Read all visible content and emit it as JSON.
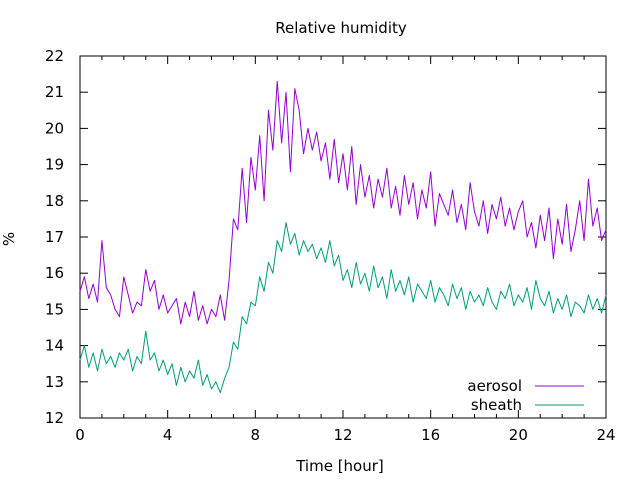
{
  "chart_data": {
    "type": "line",
    "title": "Relative humidity",
    "xlabel": "Time [hour]",
    "ylabel": "%",
    "xlim": [
      0,
      24
    ],
    "ylim": [
      12,
      22
    ],
    "xticks": [
      0,
      4,
      8,
      12,
      16,
      20,
      24
    ],
    "yticks": [
      12,
      13,
      14,
      15,
      16,
      17,
      18,
      19,
      20,
      21,
      22
    ],
    "grid": false,
    "legend_position": "bottom-right",
    "series": [
      {
        "name": "aerosol",
        "color": "#9400d3",
        "x": [
          0.0,
          0.2,
          0.4,
          0.6,
          0.8,
          1.0,
          1.2,
          1.4,
          1.6,
          1.8,
          2.0,
          2.2,
          2.4,
          2.6,
          2.8,
          3.0,
          3.2,
          3.4,
          3.6,
          3.8,
          4.0,
          4.2,
          4.4,
          4.6,
          4.8,
          5.0,
          5.2,
          5.4,
          5.6,
          5.8,
          6.0,
          6.2,
          6.4,
          6.6,
          6.8,
          7.0,
          7.2,
          7.4,
          7.6,
          7.8,
          8.0,
          8.2,
          8.4,
          8.6,
          8.8,
          9.0,
          9.2,
          9.4,
          9.6,
          9.8,
          10.0,
          10.2,
          10.4,
          10.6,
          10.8,
          11.0,
          11.2,
          11.4,
          11.6,
          11.8,
          12.0,
          12.2,
          12.4,
          12.6,
          12.8,
          13.0,
          13.2,
          13.4,
          13.6,
          13.8,
          14.0,
          14.2,
          14.4,
          14.6,
          14.8,
          15.0,
          15.2,
          15.4,
          15.6,
          15.8,
          16.0,
          16.2,
          16.4,
          16.6,
          16.8,
          17.0,
          17.2,
          17.4,
          17.6,
          17.8,
          18.0,
          18.2,
          18.4,
          18.6,
          18.8,
          19.0,
          19.2,
          19.4,
          19.6,
          19.8,
          20.0,
          20.2,
          20.4,
          20.6,
          20.8,
          21.0,
          21.2,
          21.4,
          21.6,
          21.8,
          22.0,
          22.2,
          22.4,
          22.6,
          22.8,
          23.0,
          23.2,
          23.4,
          23.6,
          23.8,
          24.0
        ],
        "y": [
          15.5,
          15.9,
          15.3,
          15.7,
          15.2,
          16.9,
          15.6,
          15.4,
          15.0,
          14.8,
          15.9,
          15.4,
          14.9,
          15.2,
          15.1,
          16.1,
          15.5,
          15.8,
          15.0,
          15.4,
          14.9,
          15.1,
          15.3,
          14.6,
          15.2,
          14.8,
          15.5,
          14.7,
          15.1,
          14.6,
          15.0,
          14.8,
          15.4,
          14.7,
          15.8,
          17.5,
          17.2,
          18.9,
          17.4,
          19.2,
          18.3,
          19.8,
          18.0,
          20.5,
          19.4,
          21.3,
          19.6,
          21.0,
          18.8,
          21.1,
          20.5,
          19.3,
          20.0,
          19.4,
          19.9,
          19.1,
          19.6,
          18.6,
          19.7,
          18.5,
          19.3,
          18.3,
          19.5,
          17.9,
          19.0,
          18.1,
          18.7,
          17.8,
          18.6,
          18.1,
          18.9,
          17.8,
          18.4,
          17.6,
          18.7,
          17.9,
          18.5,
          17.5,
          18.3,
          17.8,
          18.8,
          17.3,
          18.2,
          17.9,
          17.6,
          18.3,
          17.4,
          17.9,
          17.2,
          18.5,
          17.7,
          17.3,
          18.0,
          17.1,
          17.9,
          17.5,
          18.1,
          17.3,
          17.8,
          17.2,
          17.7,
          18.0,
          17.0,
          17.4,
          16.7,
          17.6,
          16.9,
          17.8,
          16.4,
          17.5,
          16.8,
          17.9,
          16.6,
          17.2,
          18.0,
          16.9,
          18.6,
          17.3,
          17.8,
          16.9,
          17.2
        ]
      },
      {
        "name": "sheath",
        "color": "#009e73",
        "x": [
          0.0,
          0.2,
          0.4,
          0.6,
          0.8,
          1.0,
          1.2,
          1.4,
          1.6,
          1.8,
          2.0,
          2.2,
          2.4,
          2.6,
          2.8,
          3.0,
          3.2,
          3.4,
          3.6,
          3.8,
          4.0,
          4.2,
          4.4,
          4.6,
          4.8,
          5.0,
          5.2,
          5.4,
          5.6,
          5.8,
          6.0,
          6.2,
          6.4,
          6.6,
          6.8,
          7.0,
          7.2,
          7.4,
          7.6,
          7.8,
          8.0,
          8.2,
          8.4,
          8.6,
          8.8,
          9.0,
          9.2,
          9.4,
          9.6,
          9.8,
          10.0,
          10.2,
          10.4,
          10.6,
          10.8,
          11.0,
          11.2,
          11.4,
          11.6,
          11.8,
          12.0,
          12.2,
          12.4,
          12.6,
          12.8,
          13.0,
          13.2,
          13.4,
          13.6,
          13.8,
          14.0,
          14.2,
          14.4,
          14.6,
          14.8,
          15.0,
          15.2,
          15.4,
          15.6,
          15.8,
          16.0,
          16.2,
          16.4,
          16.6,
          16.8,
          17.0,
          17.2,
          17.4,
          17.6,
          17.8,
          18.0,
          18.2,
          18.4,
          18.6,
          18.8,
          19.0,
          19.2,
          19.4,
          19.6,
          19.8,
          20.0,
          20.2,
          20.4,
          20.6,
          20.8,
          21.0,
          21.2,
          21.4,
          21.6,
          21.8,
          22.0,
          22.2,
          22.4,
          22.6,
          22.8,
          23.0,
          23.2,
          23.4,
          23.6,
          23.8,
          24.0
        ],
        "y": [
          13.6,
          14.0,
          13.4,
          13.8,
          13.3,
          13.9,
          13.5,
          13.7,
          13.4,
          13.8,
          13.6,
          13.9,
          13.3,
          13.7,
          13.5,
          14.4,
          13.6,
          13.8,
          13.3,
          13.6,
          13.2,
          13.5,
          12.9,
          13.4,
          13.0,
          13.3,
          13.1,
          13.6,
          12.9,
          13.2,
          12.8,
          13.0,
          12.7,
          13.1,
          13.4,
          14.1,
          13.9,
          14.8,
          14.6,
          15.2,
          15.1,
          15.9,
          15.5,
          16.3,
          16.0,
          16.9,
          16.6,
          17.4,
          16.8,
          17.1,
          16.5,
          16.9,
          16.6,
          16.8,
          16.4,
          16.7,
          16.3,
          16.9,
          16.2,
          16.5,
          15.8,
          16.1,
          15.6,
          16.3,
          15.7,
          16.0,
          15.5,
          16.2,
          15.6,
          15.9,
          15.3,
          16.1,
          15.5,
          15.8,
          15.4,
          15.9,
          15.2,
          15.7,
          15.5,
          15.3,
          15.8,
          15.2,
          15.6,
          15.4,
          15.1,
          15.7,
          15.3,
          15.6,
          15.0,
          15.5,
          15.2,
          15.4,
          15.1,
          15.6,
          15.2,
          15.0,
          15.5,
          15.3,
          15.7,
          15.1,
          15.4,
          15.2,
          15.6,
          15.0,
          15.8,
          15.3,
          15.1,
          15.5,
          14.9,
          15.3,
          15.0,
          15.4,
          14.8,
          15.2,
          15.1,
          14.9,
          15.4,
          15.0,
          15.3,
          14.9,
          15.4
        ]
      }
    ]
  }
}
